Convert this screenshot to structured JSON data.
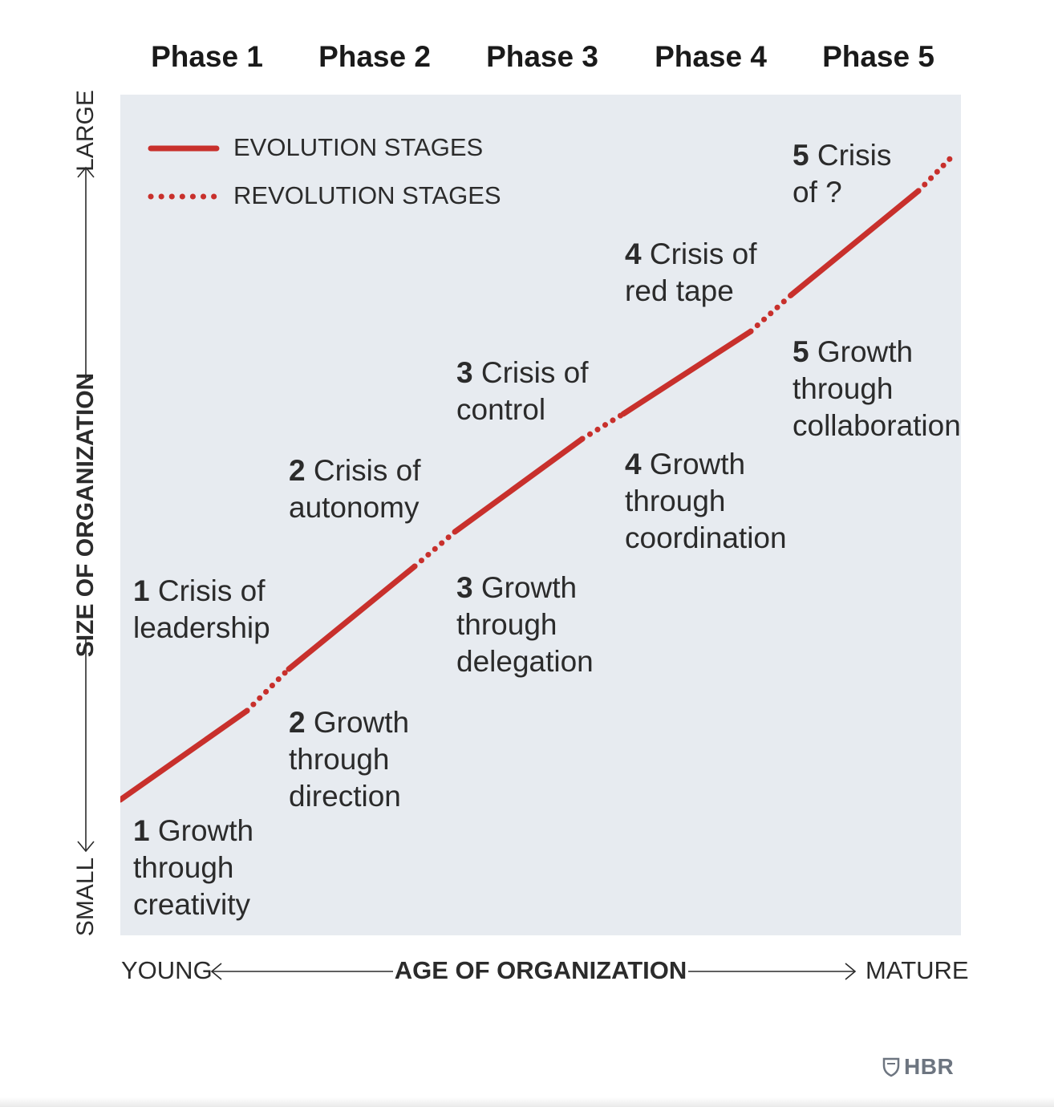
{
  "phases": [
    "Phase 1",
    "Phase 2",
    "Phase 3",
    "Phase 4",
    "Phase 5"
  ],
  "legend": {
    "evolution": "EVOLUTION STAGES",
    "revolution": "REVOLUTION STAGES"
  },
  "y_axis": {
    "label": "SIZE OF ORGANIZATION",
    "low": "SMALL",
    "high": "LARGE"
  },
  "x_axis": {
    "label": "AGE OF ORGANIZATION",
    "low": "YOUNG",
    "high": "MATURE"
  },
  "stages": [
    {
      "phase": 1,
      "growth": {
        "num": "1",
        "lines": [
          "Growth",
          "through",
          "creativity"
        ]
      },
      "crisis": {
        "num": "1",
        "lines": [
          "Crisis of",
          "leadership"
        ]
      }
    },
    {
      "phase": 2,
      "growth": {
        "num": "2",
        "lines": [
          "Growth",
          "through",
          "direction"
        ]
      },
      "crisis": {
        "num": "2",
        "lines": [
          "Crisis of",
          "autonomy"
        ]
      }
    },
    {
      "phase": 3,
      "growth": {
        "num": "3",
        "lines": [
          "Growth",
          "through",
          "delegation"
        ]
      },
      "crisis": {
        "num": "3",
        "lines": [
          "Crisis of",
          "control"
        ]
      }
    },
    {
      "phase": 4,
      "growth": {
        "num": "4",
        "lines": [
          "Growth",
          "through",
          "coordination"
        ]
      },
      "crisis": {
        "num": "4",
        "lines": [
          "Crisis of",
          "red tape"
        ]
      }
    },
    {
      "phase": 5,
      "growth": {
        "num": "5",
        "lines": [
          "Growth",
          "through",
          "collaboration"
        ]
      },
      "crisis": {
        "num": "5",
        "lines": [
          "Crisis",
          "of ?"
        ]
      }
    }
  ],
  "colors": {
    "line": "#c8302c",
    "panel": "#e7ebf0",
    "text": "#2b2b2b",
    "logo": "#6d7580"
  },
  "logo": {
    "text": "HBR",
    "icon": "shield-icon"
  }
}
